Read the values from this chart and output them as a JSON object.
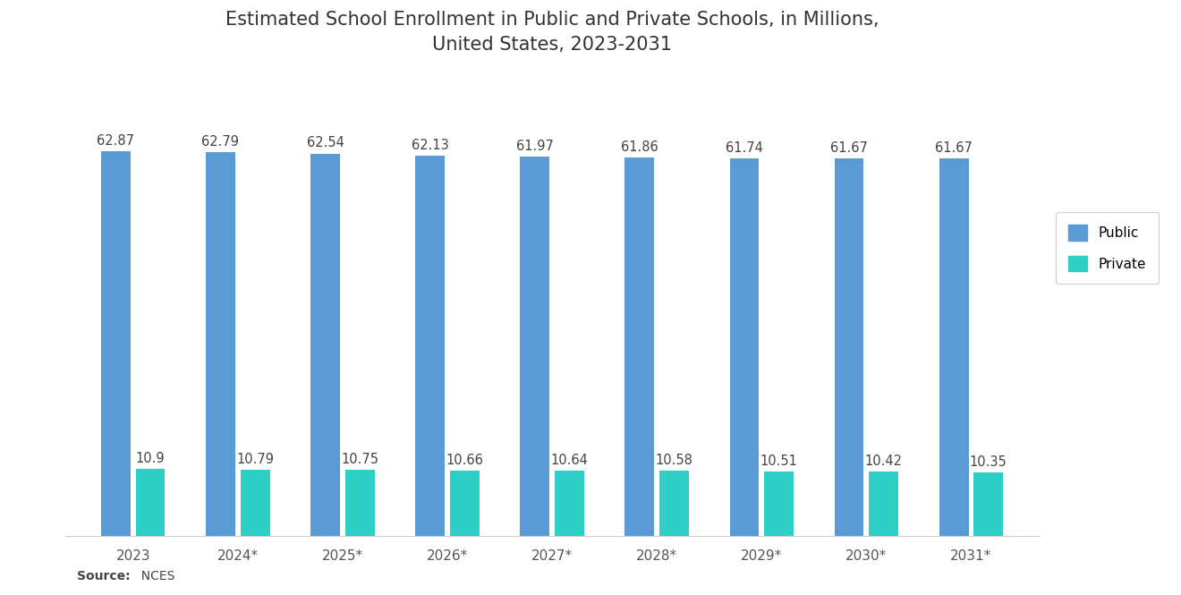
{
  "title": "Estimated School Enrollment in Public and Private Schools, in Millions,\nUnited States, 2023-2031",
  "categories": [
    "2023",
    "2024*",
    "2025*",
    "2026*",
    "2027*",
    "2028*",
    "2029*",
    "2030*",
    "2031*"
  ],
  "public_values": [
    62.87,
    62.79,
    62.54,
    62.13,
    61.97,
    61.86,
    61.74,
    61.67,
    61.67
  ],
  "private_values": [
    10.9,
    10.79,
    10.75,
    10.66,
    10.64,
    10.58,
    10.51,
    10.42,
    10.35
  ],
  "public_color": "#5b9bd5",
  "private_color": "#2ecfc4",
  "background_color": "#ffffff",
  "title_fontsize": 15,
  "label_fontsize": 10.5,
  "tick_fontsize": 11,
  "legend_labels": [
    "Public",
    "Private"
  ],
  "source_bold": "Source:",
  "source_rest": "  NCES",
  "ylim": [
    0,
    75
  ],
  "bar_width": 0.28,
  "bar_gap": 0.05
}
